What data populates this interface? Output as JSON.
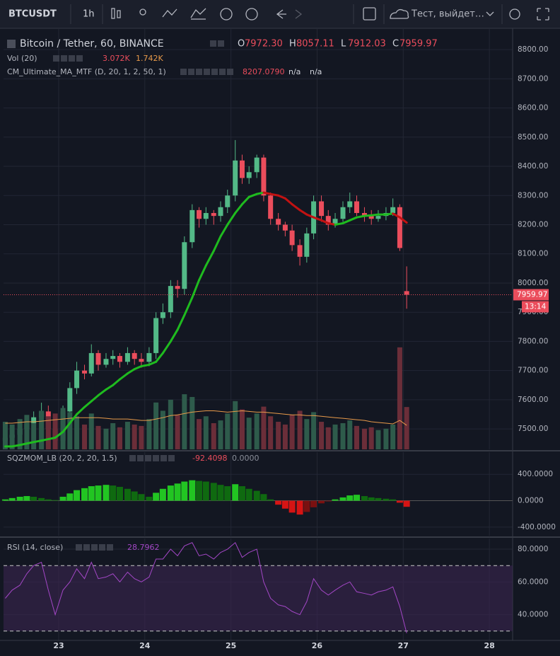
{
  "toolbar": {
    "symbol": "BTCUSDT",
    "interval": "1h",
    "search": "Тест, выйдет…"
  },
  "chart_data": [
    {
      "type": "candlestick",
      "title": "Bitcoin / Tether, 60, BINANCE",
      "ohlc_labels": [
        {
          "key": "O",
          "value": "7972.30"
        },
        {
          "key": "H",
          "value": "8057.11"
        },
        {
          "key": "L",
          "value": "7912.03"
        },
        {
          "key": "C",
          "value": "7959.97"
        }
      ],
      "countdown": "13:14",
      "x": [
        22.38,
        22.46,
        22.55,
        22.63,
        22.71,
        22.8,
        22.88,
        22.96,
        23.05,
        23.13,
        23.21,
        23.3,
        23.38,
        23.46,
        23.55,
        23.63,
        23.71,
        23.8,
        23.88,
        23.96,
        24.05,
        24.13,
        24.21,
        24.3,
        24.38,
        24.46,
        24.55,
        24.63,
        24.71,
        24.8,
        24.88,
        24.96,
        25.05,
        25.13,
        25.21,
        25.3,
        25.38,
        25.46,
        25.55,
        25.63,
        25.71,
        25.8,
        25.88,
        25.96,
        26.05,
        26.13,
        26.21,
        26.3,
        26.38,
        26.46,
        26.55,
        26.63,
        26.71,
        26.8,
        26.88,
        26.96,
        27.04
      ],
      "open": [
        7460,
        7470,
        7480,
        7500,
        7520,
        7540,
        7560,
        7500,
        7460,
        7560,
        7640,
        7700,
        7690,
        7760,
        7720,
        7740,
        7750,
        7730,
        7760,
        7740,
        7730,
        7760,
        7880,
        7900,
        7990,
        7980,
        8140,
        8250,
        8220,
        8240,
        8230,
        8260,
        8300,
        8420,
        8360,
        8380,
        8430,
        8300,
        8220,
        8200,
        8180,
        8130,
        8090,
        8170,
        8280,
        8230,
        8200,
        8220,
        8260,
        8280,
        8240,
        8230,
        8220,
        8230,
        8240,
        8260,
        7972.3
      ],
      "high": [
        7490,
        7495,
        7520,
        7540,
        7560,
        7590,
        7580,
        7510,
        7580,
        7660,
        7730,
        7720,
        7790,
        7770,
        7760,
        7770,
        7760,
        7780,
        7770,
        7760,
        7780,
        7900,
        7930,
        8010,
        8010,
        8160,
        8270,
        8260,
        8260,
        8250,
        8280,
        8320,
        8490,
        8440,
        8400,
        8440,
        8440,
        8310,
        8240,
        8210,
        8200,
        8150,
        8190,
        8300,
        8300,
        8250,
        8240,
        8280,
        8310,
        8300,
        8260,
        8250,
        8250,
        8260,
        8290,
        8270,
        8057.11
      ],
      "low": [
        7440,
        7455,
        7465,
        7490,
        7510,
        7530,
        7480,
        7430,
        7445,
        7540,
        7620,
        7670,
        7680,
        7700,
        7710,
        7720,
        7710,
        7720,
        7720,
        7710,
        7715,
        7740,
        7860,
        7880,
        7950,
        7960,
        8120,
        8190,
        8200,
        8200,
        8210,
        8240,
        8280,
        8340,
        8340,
        8360,
        8280,
        8200,
        8180,
        8160,
        8110,
        8060,
        8070,
        8150,
        8210,
        8180,
        8190,
        8210,
        8240,
        8230,
        8210,
        8200,
        8210,
        8215,
        8230,
        8110,
        7912.03
      ],
      "close": [
        7470,
        7480,
        7500,
        7520,
        7540,
        7560,
        7500,
        7460,
        7560,
        7640,
        7700,
        7690,
        7760,
        7720,
        7740,
        7750,
        7730,
        7760,
        7740,
        7730,
        7760,
        7880,
        7900,
        7990,
        7980,
        8140,
        8250,
        8220,
        8240,
        8230,
        8260,
        8300,
        8420,
        8360,
        8380,
        8430,
        8300,
        8220,
        8200,
        8180,
        8130,
        8090,
        8170,
        8280,
        8230,
        8200,
        8220,
        8260,
        8280,
        8240,
        8230,
        8220,
        8230,
        8240,
        8260,
        8120,
        7959.97
      ],
      "up_color": "#53b987",
      "down_color": "#eb4d5c",
      "xlim": [
        22.36,
        28.27
      ],
      "xticks": [
        23,
        24,
        25,
        26,
        27,
        28
      ],
      "ylim": [
        7430,
        8873
      ],
      "yticks": [
        {
          "value": 7500,
          "label": "7500.00"
        },
        {
          "value": 7600,
          "label": "7600.00"
        },
        {
          "value": 7700,
          "label": "7700.00"
        },
        {
          "value": 7800,
          "label": "7800.00"
        },
        {
          "value": 7900,
          "label": "7900.00"
        },
        {
          "value": 8000,
          "label": "8000.00"
        },
        {
          "value": 8100,
          "label": "8100.00"
        },
        {
          "value": 8200,
          "label": "8200.00"
        },
        {
          "value": 8300,
          "label": "8300.00"
        },
        {
          "value": 8400,
          "label": "8400.00"
        },
        {
          "value": 8500,
          "label": "8500.00"
        },
        {
          "value": 8600,
          "label": "8600.00"
        },
        {
          "value": 8700,
          "label": "8700.00"
        },
        {
          "value": 8800,
          "label": "8800.00"
        }
      ],
      "grid": true
    },
    {
      "type": "volume",
      "title": "Vol (20)",
      "value_label": "3.072K",
      "ma_label": "1.742K",
      "values": [
        2.0,
        1.8,
        2.2,
        2.5,
        1.9,
        2.8,
        2.4,
        2.6,
        3.0,
        2.7,
        2.4,
        1.8,
        2.6,
        1.7,
        1.5,
        1.9,
        1.6,
        2.0,
        1.8,
        1.7,
        2.2,
        3.4,
        2.8,
        3.6,
        2.5,
        4.0,
        3.8,
        2.2,
        2.4,
        1.9,
        2.1,
        2.6,
        3.5,
        2.9,
        2.3,
        2.6,
        3.1,
        2.4,
        2.0,
        1.8,
        2.5,
        2.8,
        2.2,
        2.7,
        2.0,
        1.6,
        1.8,
        1.9,
        2.1,
        1.7,
        1.5,
        1.6,
        1.4,
        1.5,
        1.8,
        7.4,
        3.072
      ],
      "ma_values": [
        1.9,
        1.9,
        1.95,
        2.0,
        2.0,
        2.05,
        2.1,
        2.15,
        2.2,
        2.25,
        2.3,
        2.3,
        2.3,
        2.3,
        2.25,
        2.2,
        2.2,
        2.2,
        2.15,
        2.1,
        2.1,
        2.2,
        2.3,
        2.45,
        2.5,
        2.6,
        2.7,
        2.75,
        2.8,
        2.8,
        2.75,
        2.7,
        2.75,
        2.8,
        2.75,
        2.7,
        2.7,
        2.65,
        2.6,
        2.55,
        2.5,
        2.5,
        2.45,
        2.45,
        2.4,
        2.35,
        2.3,
        2.25,
        2.2,
        2.15,
        2.1,
        2.0,
        1.95,
        1.9,
        1.85,
        2.1,
        1.742
      ],
      "ylim": [
        0,
        7.7
      ],
      "up_color": "#2e5b4b",
      "down_color": "#6b2e39",
      "ma_color": "#e89a4a"
    },
    {
      "type": "line",
      "title": "CM_Ultimate_MA_MTF (D, 20, 1, 2, 50, 1)",
      "legend_values": [
        "8207.0790",
        "n/a",
        "n/a"
      ],
      "values": [
        7440,
        7440,
        7445,
        7450,
        7455,
        7460,
        7465,
        7470,
        7490,
        7520,
        7550,
        7575,
        7595,
        7615,
        7635,
        7650,
        7670,
        7690,
        7705,
        7715,
        7720,
        7730,
        7760,
        7800,
        7840,
        7890,
        7950,
        8010,
        8060,
        8110,
        8160,
        8200,
        8240,
        8270,
        8295,
        8305,
        8310,
        8305,
        8300,
        8290,
        8270,
        8250,
        8235,
        8225,
        8215,
        8205,
        8200,
        8205,
        8215,
        8225,
        8230,
        8232,
        8235,
        8235,
        8238,
        8225,
        8207.079
      ],
      "rising_color": "#1fbb1f",
      "falling_color": "#c21212"
    },
    {
      "type": "histogram",
      "title": "SQZMOM_LB (20, 2, 20, 1.5)",
      "legend_values": [
        "-92.4098",
        "0.0000"
      ],
      "values": [
        20,
        40,
        60,
        70,
        60,
        40,
        20,
        10,
        60,
        110,
        160,
        190,
        220,
        230,
        240,
        230,
        210,
        180,
        140,
        100,
        60,
        120,
        180,
        230,
        260,
        290,
        310,
        300,
        290,
        270,
        240,
        220,
        250,
        220,
        180,
        150,
        100,
        20,
        -60,
        -120,
        -180,
        -210,
        -170,
        -100,
        -40,
        -10,
        20,
        50,
        80,
        90,
        70,
        50,
        40,
        30,
        20,
        -30,
        -92.4098
      ],
      "colors": {
        "up_rising": "#22c522",
        "up_falling": "#0f6a10",
        "down_falling": "#d61414",
        "down_rising": "#7a1010"
      },
      "ylim": [
        -530,
        735
      ],
      "yticks": [
        {
          "value": 400,
          "label": "400.0000"
        },
        {
          "value": 0,
          "label": "0.0000"
        },
        {
          "value": -400,
          "label": "-400.0000"
        }
      ]
    },
    {
      "type": "oscillator",
      "title": "RSI (14, close)",
      "legend_value": "28.7962",
      "values": [
        50,
        55,
        58,
        65,
        70,
        72,
        55,
        40,
        55,
        60,
        68,
        62,
        72,
        62,
        63,
        65,
        60,
        66,
        62,
        60,
        63,
        74,
        74,
        80,
        76,
        82,
        84,
        76,
        77,
        74,
        78,
        80,
        84,
        75,
        78,
        80,
        60,
        50,
        46,
        45,
        42,
        40,
        48,
        62,
        55,
        52,
        55,
        58,
        60,
        54,
        53,
        52,
        54,
        55,
        57,
        45,
        28.7962
      ],
      "bands": [
        30,
        70
      ],
      "color": "#a347c6",
      "band_color": "#3a2450",
      "ylim": [
        24.3,
        86.5
      ],
      "yticks": [
        {
          "value": 40,
          "label": "40.0000"
        },
        {
          "value": 60,
          "label": "60.0000"
        },
        {
          "value": 80,
          "label": "80.0000"
        }
      ]
    }
  ]
}
